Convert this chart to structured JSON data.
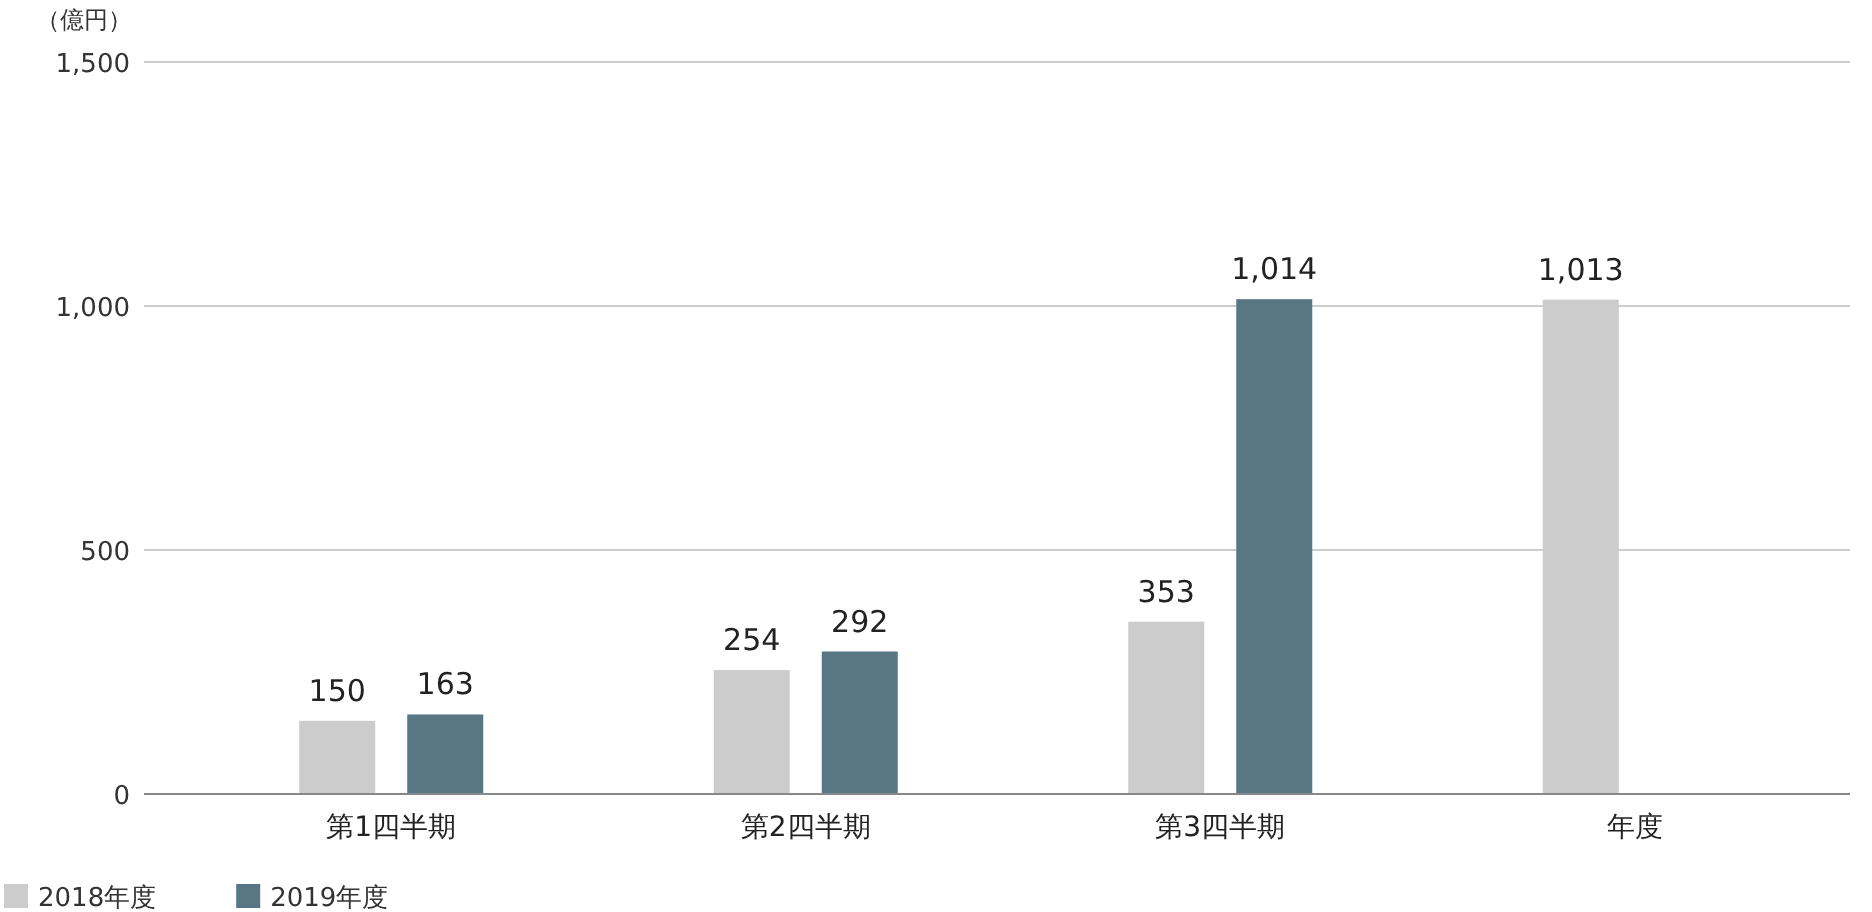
{
  "chart_data": {
    "type": "bar",
    "ylabel": "（億円）",
    "categories": [
      "第1四半期",
      "第2四半期",
      "第3四半期",
      "年度"
    ],
    "series": [
      {
        "name": "2018年度",
        "color": "#cccccc",
        "values": [
          150,
          254,
          353,
          1013
        ],
        "value_labels": [
          "150",
          "254",
          "353",
          "1,013"
        ]
      },
      {
        "name": "2019年度",
        "color": "#587684",
        "values": [
          163,
          292,
          1014,
          null
        ],
        "value_labels": [
          "163",
          "292",
          "1,014",
          null
        ]
      }
    ],
    "ylim": [
      0,
      1500
    ],
    "yticks": [
      0,
      500,
      {
        "value": 1000,
        "label": "1,000"
      },
      {
        "value": 1500,
        "label": "1,500"
      }
    ],
    "grid": "y",
    "legend": "bottom left"
  }
}
